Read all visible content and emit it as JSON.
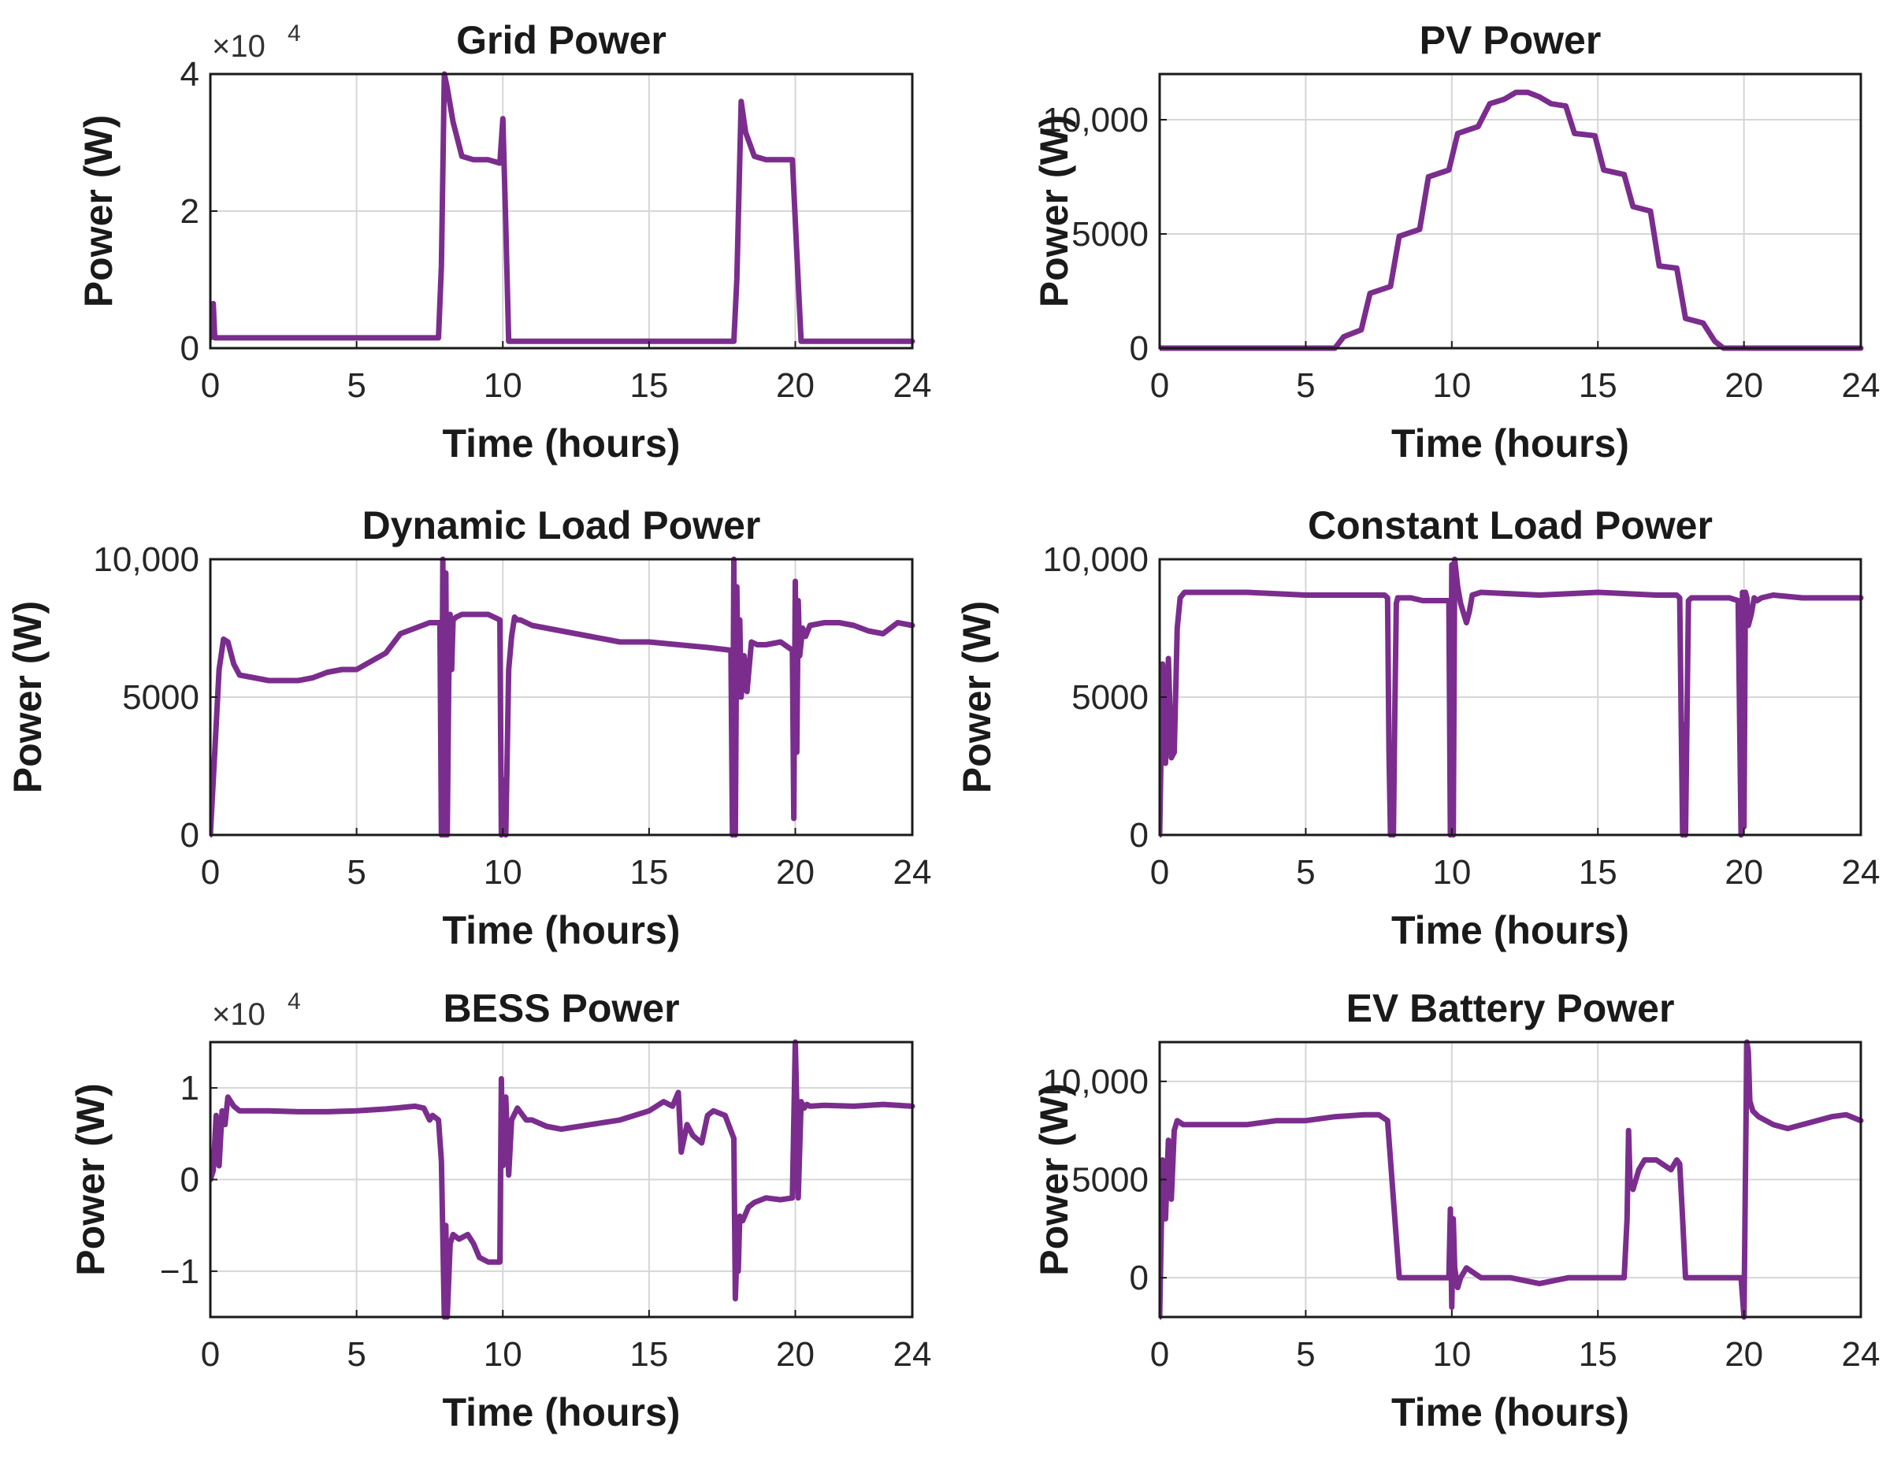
{
  "figure": {
    "line_color": "#7B2D8E"
  },
  "chart_data": [
    {
      "type": "line",
      "title": "Grid Power",
      "xlabel": "Time (hours)",
      "ylabel": "Power (W)",
      "xlim": [
        0,
        24
      ],
      "ylim": [
        0,
        40000
      ],
      "xticks": [
        0,
        5,
        10,
        15,
        20,
        24
      ],
      "xtick_labels": [
        "0",
        "5",
        "10",
        "15",
        "20",
        "24"
      ],
      "yticks": [
        0,
        20000,
        40000
      ],
      "ytick_labels": [
        "0",
        "2",
        "4"
      ],
      "exponent_label": "×10",
      "exponent_power": "4",
      "grid": true,
      "series": [
        {
          "name": "Grid Power",
          "x": [
            0,
            0.1,
            0.15,
            0.2,
            0.3,
            7.8,
            7.9,
            8.0,
            8.1,
            8.3,
            8.6,
            9.0,
            9.5,
            9.9,
            10.0,
            10.1,
            10.2,
            10.3,
            17.9,
            18.0,
            18.15,
            18.3,
            18.6,
            19.0,
            19.5,
            19.9,
            20.05,
            20.2,
            24
          ],
          "y": [
            1500,
            6500,
            1500,
            1500,
            1500,
            1500,
            12000,
            40000,
            38000,
            33000,
            28000,
            27500,
            27500,
            27000,
            33500,
            18000,
            1000,
            1000,
            1000,
            10000,
            36000,
            31500,
            28000,
            27500,
            27500,
            27500,
            14000,
            1000,
            1000
          ]
        }
      ]
    },
    {
      "type": "line",
      "title": "PV Power",
      "xlabel": "Time (hours)",
      "ylabel": "Power (W)",
      "xlim": [
        0,
        24
      ],
      "ylim": [
        0,
        12000
      ],
      "xticks": [
        0,
        5,
        10,
        15,
        20,
        24
      ],
      "xtick_labels": [
        "0",
        "5",
        "10",
        "15",
        "20",
        "24"
      ],
      "yticks": [
        0,
        5000,
        10000
      ],
      "ytick_labels": [
        "0",
        "5000",
        "10,000"
      ],
      "grid": true,
      "series": [
        {
          "name": "PV Power",
          "x": [
            0,
            6.0,
            6.3,
            6.9,
            7.2,
            7.9,
            8.2,
            8.9,
            9.2,
            9.9,
            10.2,
            10.9,
            11.3,
            11.8,
            12.2,
            12.6,
            13.0,
            13.4,
            13.9,
            14.2,
            14.9,
            15.2,
            15.9,
            16.2,
            16.8,
            17.1,
            17.7,
            18.0,
            18.6,
            19.0,
            19.3,
            24
          ],
          "y": [
            0,
            0,
            500,
            800,
            2400,
            2700,
            4900,
            5200,
            7500,
            7800,
            9400,
            9700,
            10700,
            10900,
            11200,
            11200,
            11000,
            10700,
            10600,
            9400,
            9300,
            7800,
            7600,
            6200,
            6000,
            3600,
            3500,
            1300,
            1100,
            300,
            0,
            0
          ]
        }
      ]
    },
    {
      "type": "line",
      "title": "Dynamic Load Power",
      "xlabel": "Time (hours)",
      "ylabel": "Power (W)",
      "xlim": [
        0,
        24
      ],
      "ylim": [
        0,
        10000
      ],
      "xticks": [
        0,
        5,
        10,
        15,
        20,
        24
      ],
      "xtick_labels": [
        "0",
        "5",
        "10",
        "15",
        "20",
        "24"
      ],
      "yticks": [
        0,
        5000,
        10000
      ],
      "ytick_labels": [
        "0",
        "5000",
        "10,000"
      ],
      "grid": true,
      "series": [
        {
          "name": "Dynamic Load Power",
          "x": [
            0,
            0.15,
            0.3,
            0.45,
            0.6,
            0.8,
            1.0,
            1.5,
            2.0,
            2.5,
            3.0,
            3.5,
            4.0,
            4.5,
            5.0,
            5.5,
            6.0,
            6.5,
            7.0,
            7.5,
            7.85,
            7.9,
            7.95,
            8.0,
            8.05,
            8.1,
            8.15,
            8.2,
            8.25,
            8.3,
            8.4,
            8.6,
            9.0,
            9.5,
            9.9,
            9.95,
            10.0,
            10.1,
            10.2,
            10.3,
            10.4,
            10.5,
            10.6,
            10.8,
            11.0,
            12.0,
            13.0,
            14.0,
            15.0,
            16.0,
            17.0,
            17.8,
            17.85,
            17.9,
            17.95,
            18.0,
            18.05,
            18.1,
            18.15,
            18.25,
            18.35,
            18.5,
            18.7,
            19.0,
            19.5,
            19.9,
            19.95,
            20.0,
            20.05,
            20.1,
            20.15,
            20.25,
            20.35,
            20.5,
            21.0,
            21.5,
            22.0,
            22.5,
            23.0,
            23.5,
            24.0
          ],
          "y": [
            0,
            3000,
            6000,
            7100,
            7000,
            6200,
            5800,
            5700,
            5600,
            5600,
            5600,
            5700,
            5900,
            6000,
            6000,
            6300,
            6600,
            7300,
            7500,
            7700,
            7700,
            0,
            10000,
            0,
            9500,
            0,
            5600,
            8000,
            6000,
            7800,
            7900,
            8000,
            8000,
            8000,
            7800,
            0,
            2000,
            0,
            6000,
            7200,
            7900,
            7800,
            7800,
            7700,
            7600,
            7400,
            7200,
            7000,
            7000,
            6900,
            6800,
            6700,
            0,
            10000,
            0,
            9000,
            5000,
            7800,
            5000,
            6500,
            5200,
            7000,
            6900,
            6900,
            7000,
            6700,
            600,
            9200,
            3000,
            8500,
            6500,
            7500,
            7200,
            7600,
            7700,
            7700,
            7600,
            7400,
            7300,
            7700,
            7600
          ]
        }
      ]
    },
    {
      "type": "line",
      "title": "Constant Load Power",
      "xlabel": "Time (hours)",
      "ylabel": "Power (W)",
      "xlim": [
        0,
        24
      ],
      "ylim": [
        0,
        10000
      ],
      "xticks": [
        0,
        5,
        10,
        15,
        20,
        24
      ],
      "xtick_labels": [
        "0",
        "5",
        "10",
        "15",
        "20",
        "24"
      ],
      "yticks": [
        0,
        5000,
        10000
      ],
      "ytick_labels": [
        "0",
        "5000",
        "10,000"
      ],
      "grid": true,
      "series": [
        {
          "name": "Constant Load Power",
          "x": [
            0,
            0.1,
            0.2,
            0.3,
            0.4,
            0.5,
            0.6,
            0.7,
            0.85,
            1.0,
            3.0,
            5.0,
            7.0,
            7.7,
            7.8,
            7.85,
            7.9,
            7.95,
            8.0,
            8.05,
            8.1,
            8.15,
            8.3,
            8.6,
            9.0,
            9.5,
            9.9,
            9.95,
            10.0,
            10.05,
            10.1,
            10.2,
            10.3,
            10.5,
            10.6,
            10.7,
            11.0,
            13.0,
            15.0,
            17.0,
            17.7,
            17.8,
            17.9,
            17.95,
            18.0,
            18.1,
            18.2,
            18.4,
            18.6,
            19.0,
            19.5,
            19.8,
            19.9,
            19.95,
            20.0,
            20.05,
            20.1,
            20.15,
            20.25,
            20.35,
            20.45,
            20.6,
            21.0,
            22.0,
            23.0,
            24.0
          ],
          "y": [
            0,
            6200,
            2600,
            6400,
            2800,
            3000,
            7500,
            8600,
            8800,
            8800,
            8800,
            8700,
            8700,
            8700,
            8600,
            3000,
            0,
            3000,
            0,
            4500,
            8400,
            8600,
            8600,
            8600,
            8500,
            8500,
            8500,
            0,
            9800,
            0,
            10000,
            9000,
            8400,
            7700,
            8100,
            8700,
            8800,
            8700,
            8800,
            8700,
            8700,
            8600,
            0,
            4000,
            0,
            8500,
            8600,
            8600,
            8600,
            8600,
            8600,
            8500,
            0,
            8800,
            300,
            8800,
            8600,
            7600,
            8000,
            8600,
            8500,
            8600,
            8700,
            8600,
            8600,
            8600
          ]
        }
      ]
    },
    {
      "type": "line",
      "title": "BESS Power",
      "xlabel": "Time (hours)",
      "ylabel": "Power (W)",
      "xlim": [
        0,
        24
      ],
      "ylim": [
        -15000,
        15000
      ],
      "xticks": [
        0,
        5,
        10,
        15,
        20,
        24
      ],
      "xtick_labels": [
        "0",
        "5",
        "10",
        "15",
        "20",
        "24"
      ],
      "yticks": [
        -10000,
        0,
        10000
      ],
      "ytick_labels": [
        "−1",
        "0",
        "1"
      ],
      "exponent_label": "×10",
      "exponent_power": "4",
      "grid": true,
      "series": [
        {
          "name": "BESS Power",
          "x": [
            0,
            0.1,
            0.2,
            0.3,
            0.4,
            0.5,
            0.6,
            0.8,
            1.0,
            2.0,
            3.0,
            4.0,
            5.0,
            6.0,
            7.0,
            7.3,
            7.5,
            7.6,
            7.8,
            7.9,
            8.0,
            8.05,
            8.1,
            8.2,
            8.3,
            8.5,
            8.8,
            9.0,
            9.2,
            9.5,
            9.9,
            9.95,
            10.0,
            10.1,
            10.2,
            10.3,
            10.5,
            10.8,
            11.0,
            11.5,
            12.0,
            13.0,
            14.0,
            15.0,
            15.5,
            15.8,
            16.0,
            16.1,
            16.3,
            16.5,
            16.8,
            17.0,
            17.2,
            17.6,
            17.9,
            17.95,
            18.0,
            18.05,
            18.1,
            18.2,
            18.4,
            18.6,
            19.0,
            19.5,
            19.9,
            20.0,
            20.05,
            20.1,
            20.2,
            20.3,
            20.4,
            20.5,
            21.0,
            22.0,
            23.0,
            24.0
          ],
          "y": [
            0,
            1000,
            7000,
            1500,
            7500,
            6000,
            9000,
            8000,
            7500,
            7500,
            7400,
            7400,
            7500,
            7700,
            8000,
            7800,
            6500,
            7000,
            6500,
            2000,
            -15000,
            -5000,
            -15000,
            -7000,
            -6000,
            -6500,
            -6000,
            -7000,
            -8500,
            -9000,
            -9000,
            11000,
            1500,
            9000,
            500,
            6500,
            7800,
            6500,
            6500,
            5800,
            5500,
            6000,
            6500,
            7500,
            8500,
            8000,
            9500,
            3000,
            6000,
            4800,
            4000,
            7000,
            7500,
            7000,
            4500,
            -13000,
            -8000,
            -10000,
            -4000,
            -4500,
            -3000,
            -2500,
            -2000,
            -2200,
            -2000,
            15000,
            8000,
            -2000,
            8500,
            7800,
            8200,
            8000,
            8100,
            8000,
            8200,
            8000
          ]
        }
      ]
    },
    {
      "type": "line",
      "title": "EV Battery Power",
      "xlabel": "Time (hours)",
      "ylabel": "Power (W)",
      "xlim": [
        0,
        24
      ],
      "ylim": [
        -2000,
        12000
      ],
      "xticks": [
        0,
        5,
        10,
        15,
        20,
        24
      ],
      "xtick_labels": [
        "0",
        "5",
        "10",
        "15",
        "20",
        "24"
      ],
      "yticks": [
        0,
        5000,
        10000
      ],
      "ytick_labels": [
        "0",
        "5000",
        "10,000"
      ],
      "grid": true,
      "series": [
        {
          "name": "EV Battery Power",
          "x": [
            0,
            0.1,
            0.2,
            0.3,
            0.4,
            0.5,
            0.6,
            0.8,
            1.0,
            2.0,
            3.0,
            4.0,
            5.0,
            6.0,
            7.0,
            7.5,
            7.8,
            8.0,
            8.2,
            8.5,
            9.0,
            9.5,
            9.9,
            9.95,
            10.0,
            10.05,
            10.1,
            10.2,
            10.3,
            10.5,
            11.0,
            12.0,
            13.0,
            14.0,
            15.0,
            15.5,
            15.9,
            16.0,
            16.05,
            16.1,
            16.2,
            16.4,
            16.6,
            17.0,
            17.5,
            17.7,
            17.8,
            17.9,
            18.0,
            18.5,
            19.0,
            19.5,
            19.9,
            20.0,
            20.05,
            20.1,
            20.15,
            20.2,
            20.3,
            20.5,
            21.0,
            21.5,
            22.0,
            22.5,
            23.0,
            23.5,
            24.0
          ],
          "y": [
            -2000,
            6000,
            3000,
            7000,
            4000,
            7500,
            8000,
            7800,
            7800,
            7800,
            7800,
            8000,
            8000,
            8200,
            8300,
            8300,
            8000,
            4000,
            0,
            0,
            0,
            0,
            0,
            3500,
            -1500,
            3000,
            500,
            -500,
            0,
            500,
            0,
            0,
            -300,
            0,
            0,
            0,
            0,
            3000,
            7500,
            5000,
            4500,
            5500,
            6000,
            6000,
            5500,
            6000,
            5800,
            3000,
            0,
            0,
            0,
            0,
            0,
            -2000,
            5000,
            12000,
            11500,
            9000,
            8500,
            8200,
            7800,
            7600,
            7800,
            8000,
            8200,
            8300,
            8000
          ]
        }
      ]
    }
  ]
}
